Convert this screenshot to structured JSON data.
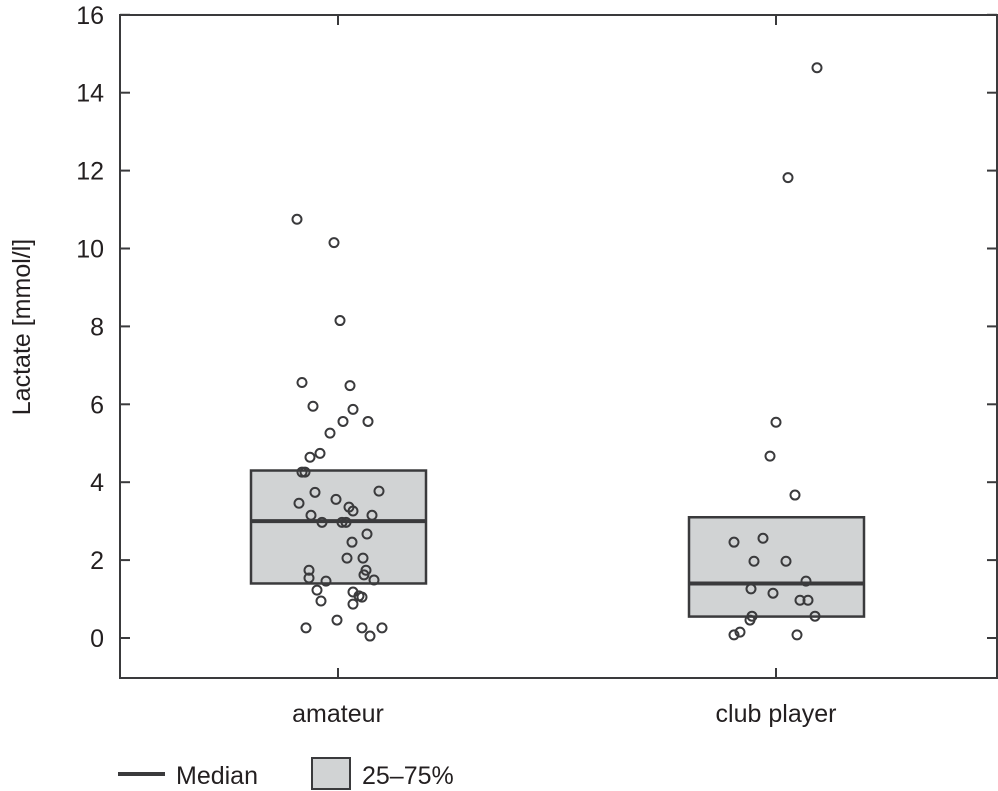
{
  "chart_data": {
    "type": "box-strip",
    "ylabel": "Lactate [mmol/l]",
    "xlabel": "",
    "ylim": [
      -1,
      16
    ],
    "yticks": [
      0,
      2,
      4,
      6,
      8,
      10,
      12,
      14,
      16
    ],
    "categories": [
      "amateur",
      "club player"
    ],
    "grid": false,
    "legend": {
      "position": "bottom-left",
      "median_label": "Median",
      "box_label": "25–75%"
    },
    "colors": {
      "box_fill": "#d1d3d4",
      "stroke": "#3a3a3c"
    },
    "groups": [
      {
        "name": "amateur",
        "q1": 1.4,
        "median": 3.0,
        "q3": 4.3,
        "points": [
          10.75,
          10.15,
          8.15,
          6.56,
          6.48,
          5.95,
          5.87,
          5.56,
          5.56,
          5.26,
          4.74,
          4.64,
          4.26,
          4.26,
          3.74,
          3.77,
          3.46,
          3.56,
          3.36,
          3.26,
          3.15,
          3.15,
          2.97,
          2.97,
          2.97,
          2.67,
          2.46,
          2.05,
          2.05,
          1.74,
          1.74,
          1.62,
          1.54,
          1.46,
          1.49,
          1.23,
          1.18,
          1.08,
          1.05,
          0.95,
          0.87,
          0.46,
          0.26,
          0.26,
          0.26,
          0.05
        ]
      },
      {
        "name": "club player",
        "q1": 0.55,
        "median": 1.4,
        "q3": 3.1,
        "points": [
          14.64,
          11.82,
          5.54,
          4.67,
          3.67,
          2.46,
          2.56,
          1.97,
          1.97,
          1.46,
          1.26,
          1.15,
          0.97,
          0.97,
          0.56,
          0.56,
          0.46,
          0.15,
          0.08,
          0.08
        ]
      }
    ]
  }
}
